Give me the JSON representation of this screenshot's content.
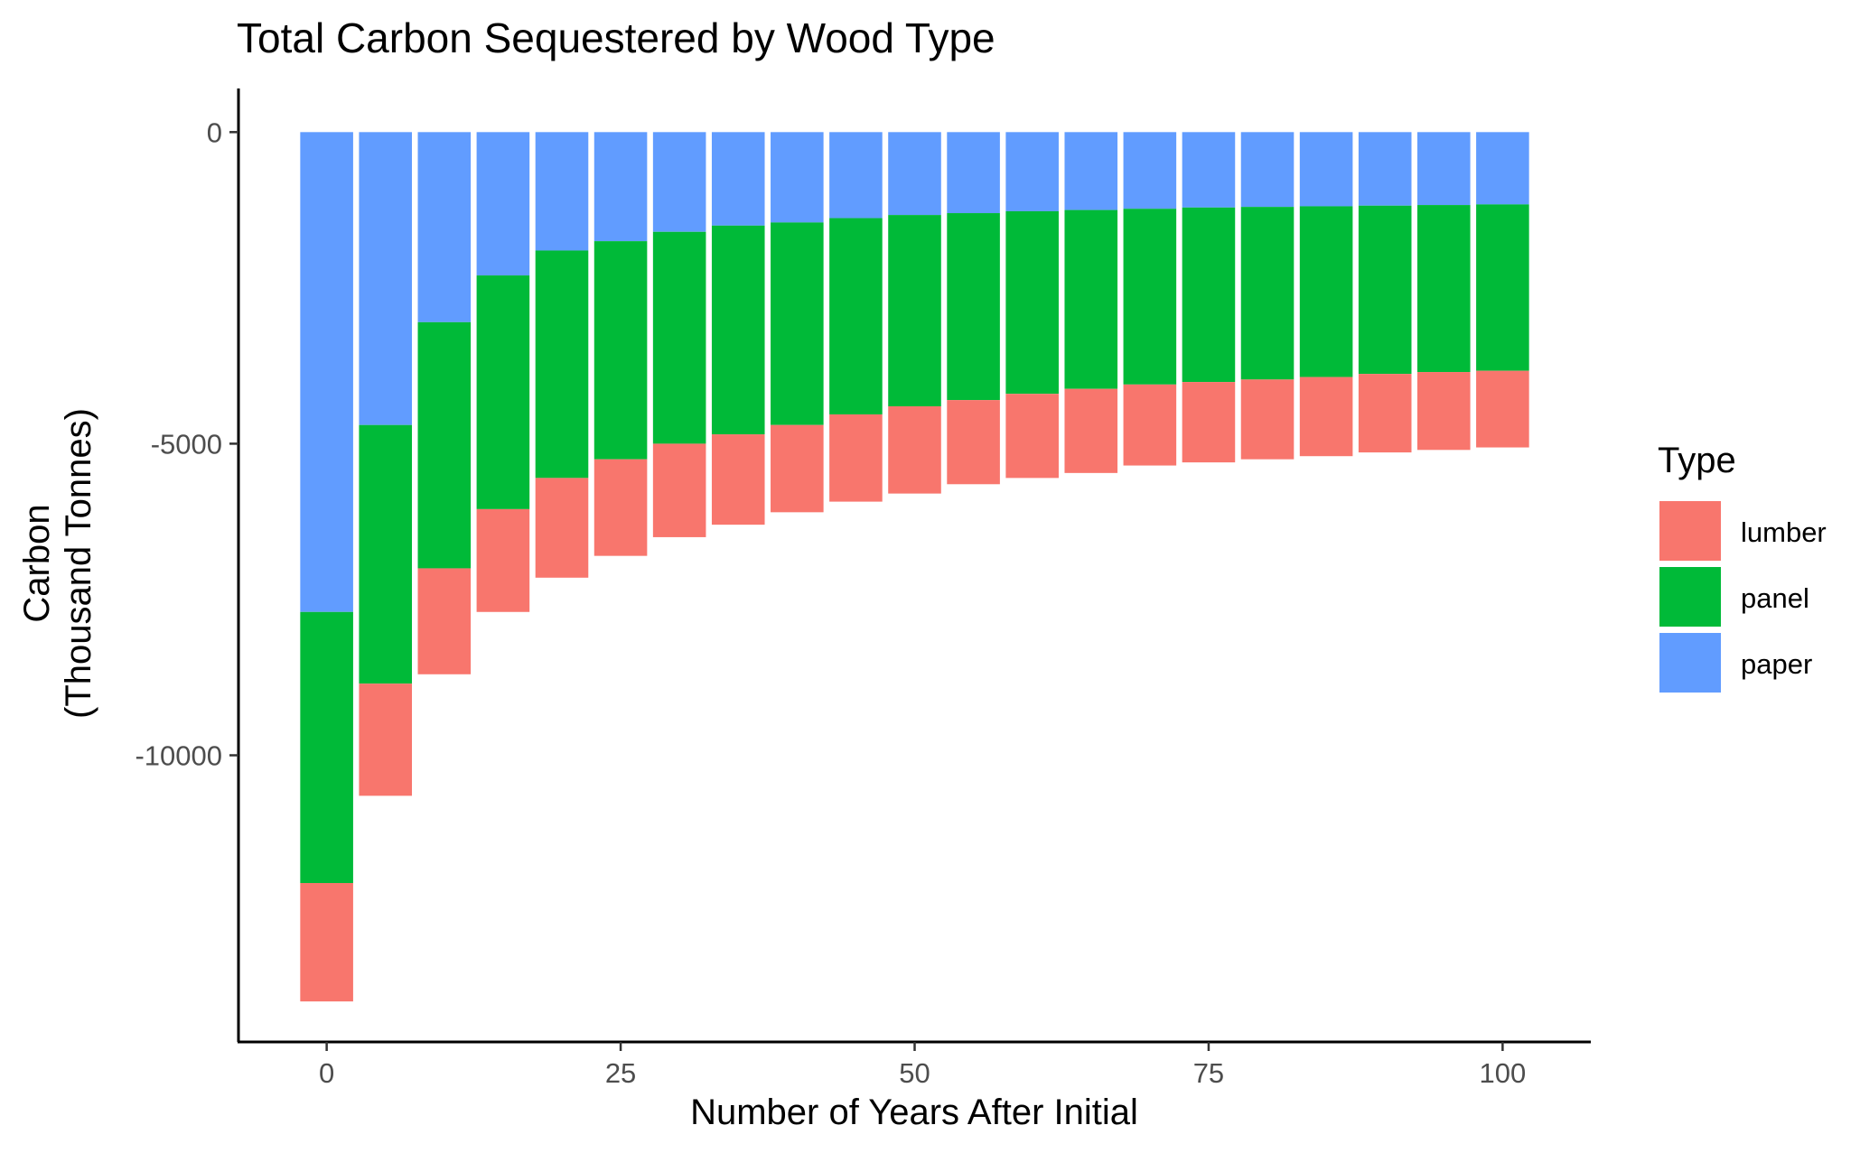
{
  "chart_data": {
    "type": "bar",
    "stacked": true,
    "title": "Total Carbon Sequestered by Wood Type",
    "xlabel": "Number of Years After Initial",
    "ylabel_lines": [
      "Carbon",
      "(Thousand Tonnes)"
    ],
    "x": [
      0,
      5,
      10,
      15,
      20,
      25,
      30,
      35,
      40,
      45,
      50,
      55,
      60,
      65,
      70,
      75,
      80,
      85,
      90,
      95,
      100
    ],
    "xlim": [
      -7.5,
      107.5
    ],
    "ylim": [
      -14600,
      700
    ],
    "x_ticks": [
      0,
      25,
      50,
      75,
      100
    ],
    "x_tick_labels": [
      "0",
      "25",
      "50",
      "75",
      "100"
    ],
    "y_ticks": [
      0,
      -5000,
      -10000
    ],
    "y_tick_labels": [
      "0",
      "-5000",
      "-10000"
    ],
    "grid": false,
    "legend": {
      "title": "Type",
      "position": "right",
      "entries": [
        {
          "name": "lumber",
          "color": "#F8766D"
        },
        {
          "name": "panel",
          "color": "#00BA38"
        },
        {
          "name": "paper",
          "color": "#619CFF"
        }
      ]
    },
    "stack_order": [
      "paper",
      "panel",
      "lumber"
    ],
    "series": [
      {
        "name": "paper",
        "color": "#619CFF",
        "values": [
          -7700,
          -4700,
          -3050,
          -2300,
          -1900,
          -1750,
          -1600,
          -1500,
          -1450,
          -1380,
          -1330,
          -1300,
          -1270,
          -1250,
          -1230,
          -1210,
          -1200,
          -1190,
          -1180,
          -1170,
          -1160
        ]
      },
      {
        "name": "panel",
        "color": "#00BA38",
        "values": [
          -4350,
          -4150,
          -3950,
          -3750,
          -3650,
          -3500,
          -3400,
          -3350,
          -3250,
          -3150,
          -3070,
          -3000,
          -2930,
          -2870,
          -2820,
          -2800,
          -2770,
          -2740,
          -2700,
          -2680,
          -2670
        ]
      },
      {
        "name": "lumber",
        "color": "#F8766D",
        "values": [
          -1900,
          -1800,
          -1700,
          -1650,
          -1600,
          -1550,
          -1500,
          -1450,
          -1400,
          -1400,
          -1400,
          -1350,
          -1350,
          -1350,
          -1300,
          -1290,
          -1280,
          -1270,
          -1260,
          -1250,
          -1230
        ]
      }
    ]
  }
}
